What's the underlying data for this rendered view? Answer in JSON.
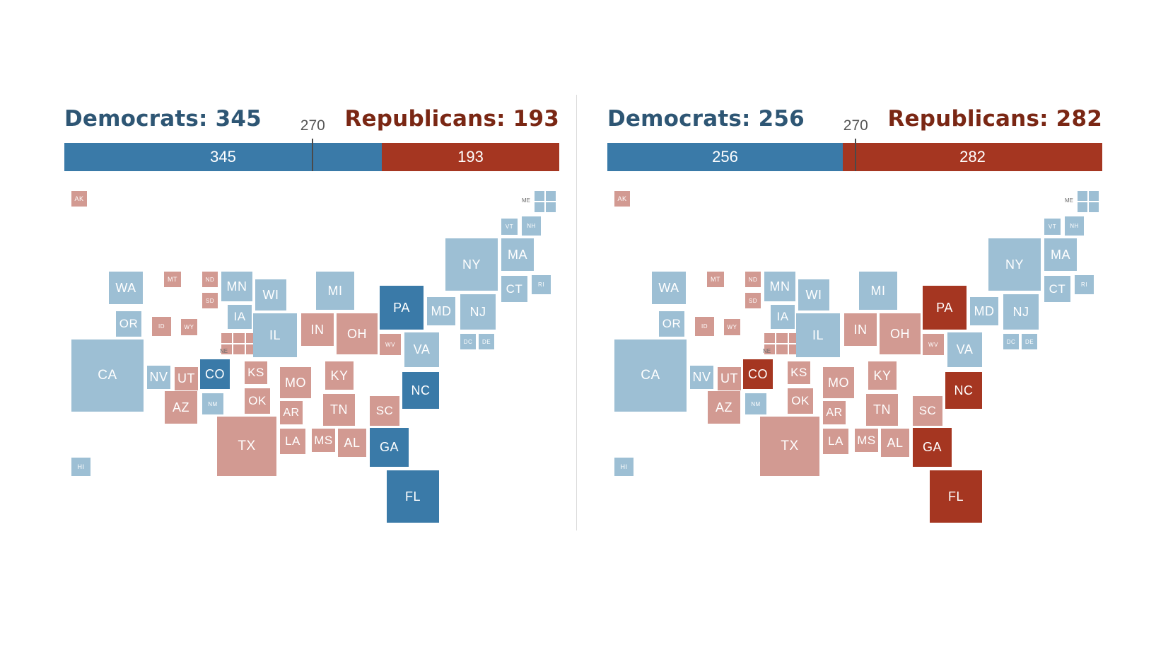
{
  "threshold_label": "270",
  "panels": [
    {
      "id": "left",
      "democrats_label": "Democrats: 345",
      "republicans_label": "Republicans: 193",
      "dem_votes": 345,
      "rep_votes": 193,
      "dem_bar_label": "345",
      "rep_bar_label": "193",
      "states": {
        "PA": "dd",
        "CO": "dd",
        "NC": "dd",
        "GA": "dd",
        "FL": "dd"
      }
    },
    {
      "id": "right",
      "democrats_label": "Democrats: 256",
      "republicans_label": "Republicans: 282",
      "dem_votes": 256,
      "rep_votes": 282,
      "dem_bar_label": "256",
      "rep_bar_label": "282",
      "states": {
        "PA": "rr",
        "CO": "rr",
        "NC": "rr",
        "GA": "rr",
        "FL": "rr"
      }
    }
  ],
  "base_states": {
    "AK": {
      "label": "AK",
      "party": "r"
    },
    "HI": {
      "label": "HI",
      "party": "d"
    },
    "WA": {
      "label": "WA",
      "party": "d"
    },
    "OR": {
      "label": "OR",
      "party": "d"
    },
    "CA": {
      "label": "CA",
      "party": "d"
    },
    "NV": {
      "label": "NV",
      "party": "d"
    },
    "ID": {
      "label": "ID",
      "party": "r"
    },
    "MT": {
      "label": "MT",
      "party": "r"
    },
    "WY": {
      "label": "WY",
      "party": "r"
    },
    "UT": {
      "label": "UT",
      "party": "r"
    },
    "AZ": {
      "label": "AZ",
      "party": "r"
    },
    "NM": {
      "label": "NM",
      "party": "d"
    },
    "CO": {
      "label": "CO",
      "party": "d"
    },
    "ND": {
      "label": "ND",
      "party": "r"
    },
    "SD": {
      "label": "SD",
      "party": "r"
    },
    "NE": {
      "label": "NE",
      "party": "r"
    },
    "KS": {
      "label": "KS",
      "party": "r"
    },
    "OK": {
      "label": "OK",
      "party": "r"
    },
    "TX": {
      "label": "TX",
      "party": "r"
    },
    "MN": {
      "label": "MN",
      "party": "d"
    },
    "IA": {
      "label": "IA",
      "party": "d"
    },
    "MO": {
      "label": "MO",
      "party": "r"
    },
    "AR": {
      "label": "AR",
      "party": "r"
    },
    "LA": {
      "label": "LA",
      "party": "r"
    },
    "WI": {
      "label": "WI",
      "party": "d"
    },
    "IL": {
      "label": "IL",
      "party": "d"
    },
    "MI": {
      "label": "MI",
      "party": "d"
    },
    "IN": {
      "label": "IN",
      "party": "r"
    },
    "OH": {
      "label": "OH",
      "party": "r"
    },
    "KY": {
      "label": "KY",
      "party": "r"
    },
    "TN": {
      "label": "TN",
      "party": "r"
    },
    "MS": {
      "label": "MS",
      "party": "r"
    },
    "AL": {
      "label": "AL",
      "party": "r"
    },
    "GA": {
      "label": "GA",
      "party": "r"
    },
    "FL": {
      "label": "FL",
      "party": "r"
    },
    "SC": {
      "label": "SC",
      "party": "r"
    },
    "NC": {
      "label": "NC",
      "party": "r"
    },
    "VA": {
      "label": "VA",
      "party": "d"
    },
    "WV": {
      "label": "WV",
      "party": "r"
    },
    "PA": {
      "label": "PA",
      "party": "d"
    },
    "MD": {
      "label": "MD",
      "party": "d"
    },
    "DC": {
      "label": "DC",
      "party": "d"
    },
    "DE": {
      "label": "DE",
      "party": "d"
    },
    "NJ": {
      "label": "NJ",
      "party": "d"
    },
    "NY": {
      "label": "NY",
      "party": "d"
    },
    "CT": {
      "label": "CT",
      "party": "d"
    },
    "RI": {
      "label": "RI",
      "party": "d"
    },
    "MA": {
      "label": "MA",
      "party": "d"
    },
    "VT": {
      "label": "VT",
      "party": "d"
    },
    "NH": {
      "label": "NH",
      "party": "d"
    },
    "ME": {
      "label": "ME",
      "party": "d"
    }
  },
  "colors": {
    "dem_light": "#9dbfd4",
    "rep_light": "#d29a92",
    "dem_dark": "#3a7aa8",
    "rep_dark": "#a53621",
    "dem_text": "#2e5674",
    "rep_text": "#7a2714"
  }
}
